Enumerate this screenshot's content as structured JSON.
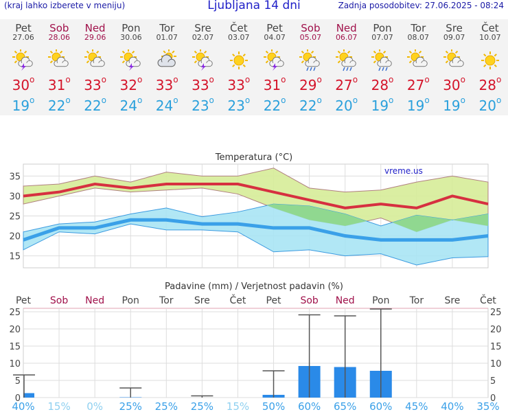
{
  "header": {
    "menu_hint": "(kraj lahko izberete v meniju)",
    "title": "Ljubljana 14 dni",
    "updated": "Zadnja posodobitev: 27.06.2025 - 08:24"
  },
  "days": [
    {
      "name": "Pet",
      "date": "27.06",
      "weekend": false,
      "icon": "sun-cloud-thunder-icon",
      "tmax": "30",
      "tmin": "19"
    },
    {
      "name": "Sob",
      "date": "28.06",
      "weekend": true,
      "icon": "sun-cloud-icon",
      "tmax": "31",
      "tmin": "22"
    },
    {
      "name": "Ned",
      "date": "29.06",
      "weekend": true,
      "icon": "sun-cloud-icon",
      "tmax": "33",
      "tmin": "22"
    },
    {
      "name": "Pon",
      "date": "30.06",
      "weekend": false,
      "icon": "sun-cloud-thunder-icon",
      "tmax": "32",
      "tmin": "24"
    },
    {
      "name": "Tor",
      "date": "01.07",
      "weekend": false,
      "icon": "cloud-sun-icon",
      "tmax": "33",
      "tmin": "24"
    },
    {
      "name": "Sre",
      "date": "02.07",
      "weekend": false,
      "icon": "sun-cloud-thunder-icon",
      "tmax": "33",
      "tmin": "23"
    },
    {
      "name": "Čet",
      "date": "03.07",
      "weekend": false,
      "icon": "sun-icon",
      "tmax": "33",
      "tmin": "23"
    },
    {
      "name": "Pet",
      "date": "04.07",
      "weekend": false,
      "icon": "sun-cloud-thunder-icon",
      "tmax": "31",
      "tmin": "22"
    },
    {
      "name": "Sob",
      "date": "05.07",
      "weekend": true,
      "icon": "sun-cloud-rain-icon",
      "tmax": "29",
      "tmin": "22"
    },
    {
      "name": "Ned",
      "date": "06.07",
      "weekend": true,
      "icon": "sun-cloud-rain-icon",
      "tmax": "27",
      "tmin": "20"
    },
    {
      "name": "Pon",
      "date": "07.07",
      "weekend": false,
      "icon": "sun-cloud-rain-icon",
      "tmax": "28",
      "tmin": "19"
    },
    {
      "name": "Tor",
      "date": "08.07",
      "weekend": false,
      "icon": "sun-cloud-icon",
      "tmax": "27",
      "tmin": "19"
    },
    {
      "name": "Sre",
      "date": "09.07",
      "weekend": false,
      "icon": "sun-cloud-icon",
      "tmax": "30",
      "tmin": "19"
    },
    {
      "name": "Čet",
      "date": "10.07",
      "weekend": false,
      "icon": "sun-icon",
      "tmax": "28",
      "tmin": "20"
    }
  ],
  "chart_data": [
    {
      "type": "line",
      "title": "Temperatura (°C)",
      "watermark": "vreme.us",
      "ylim": [
        12,
        38
      ],
      "yticks": [
        "15",
        "20",
        "25",
        "30",
        "35"
      ],
      "grid": true,
      "categories": [
        "Pet",
        "Sob",
        "Ned",
        "Pon",
        "Tor",
        "Sre",
        "Čet",
        "Pet",
        "Sob",
        "Ned",
        "Pon",
        "Tor",
        "Sre",
        "Čet"
      ],
      "tmax_series": [
        30,
        31,
        33,
        32,
        33,
        33,
        33,
        31,
        29,
        27,
        28,
        27,
        30,
        28
      ],
      "tmax_band_high": [
        32.5,
        33,
        35,
        33.5,
        36,
        35,
        35,
        37,
        32,
        31,
        31.5,
        33.5,
        35,
        33.5
      ],
      "tmax_band_low": [
        28,
        30,
        32,
        31,
        31.5,
        32,
        30.5,
        27,
        24,
        22.5,
        24.5,
        21,
        24,
        22.5
      ],
      "tmin_series": [
        19,
        22,
        22,
        24,
        24,
        23,
        23,
        22,
        22,
        20,
        19,
        19,
        19,
        20
      ],
      "tmin_band_high": [
        21,
        23,
        23.5,
        25.5,
        27,
        24.8,
        26,
        28,
        27.5,
        25.5,
        22.5,
        25.2,
        24,
        25.5
      ],
      "tmin_band_low": [
        16.5,
        21,
        20.5,
        23,
        21.5,
        21.5,
        21,
        16,
        16.5,
        15,
        15.5,
        12.7,
        14.5,
        14.8
      ],
      "colors": {
        "tmax": "#d63040",
        "tmax_band": "#d6ec98",
        "tmin": "#3aa0e8",
        "tmin_band": "#a8e4f4",
        "overlap": "#90d890"
      }
    },
    {
      "type": "bar",
      "title": "Padavine (mm) / Verjetnost padavin (%)",
      "ylim": [
        0,
        26
      ],
      "yticks": [
        "0",
        "5",
        "10",
        "15",
        "20",
        "25"
      ],
      "grid": true,
      "categories": [
        "Pet",
        "Sob",
        "Ned",
        "Pon",
        "Tor",
        "Sre",
        "Čet",
        "Pet",
        "Sob",
        "Ned",
        "Pon",
        "Tor",
        "Sre",
        "Čet"
      ],
      "weekend": [
        false,
        true,
        true,
        false,
        false,
        false,
        false,
        false,
        true,
        true,
        false,
        false,
        false,
        false
      ],
      "precip_mm": [
        1.3,
        0,
        0,
        0.1,
        0,
        0,
        0,
        0.8,
        9.2,
        8.9,
        7.8,
        0,
        0,
        0
      ],
      "precip_max_mm": [
        6.6,
        0,
        0,
        2.8,
        0,
        0.5,
        0,
        7.8,
        24.1,
        23.8,
        25.8,
        0,
        0,
        0
      ],
      "probability": [
        "40%",
        "15%",
        "0%",
        "25%",
        "25%",
        "25%",
        "15%",
        "50%",
        "60%",
        "65%",
        "60%",
        "45%",
        "40%",
        "35%"
      ],
      "colors": {
        "bar": "#2a8ae8",
        "whisker": "#555555",
        "prob_high": "#3aa0e8",
        "prob_low": "#8fd0f0"
      }
    }
  ]
}
